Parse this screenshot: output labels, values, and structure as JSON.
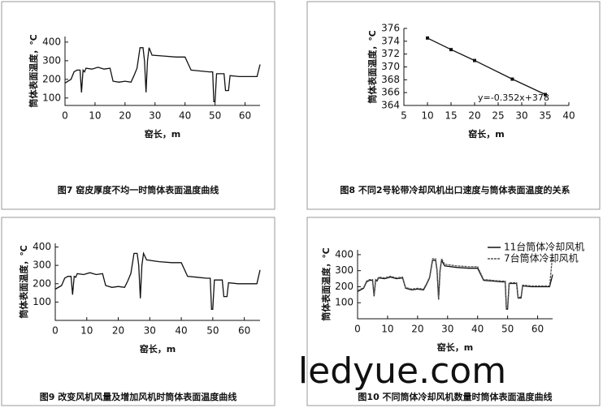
{
  "chart_data": [
    {
      "type": "line",
      "caption": "图7  窑皮厚度不均一时筒体表面温度曲线",
      "xlabel": "窑长，m",
      "ylabel": "筒体表面温度，℃",
      "xlim": [
        0,
        65
      ],
      "xticks": [
        0,
        10,
        20,
        30,
        40,
        50,
        60
      ],
      "ylim": [
        60,
        430
      ],
      "yticks": [
        100,
        200,
        300,
        400
      ],
      "series": [
        {
          "color": "#111111",
          "x": [
            0,
            2,
            3,
            4,
            5,
            5.5,
            6,
            6.5,
            7,
            9,
            11,
            13,
            15,
            16,
            18,
            20,
            22,
            23,
            24,
            25,
            26,
            26.5,
            27,
            27.5,
            28,
            29,
            33,
            37,
            40,
            42,
            45,
            48,
            49.2,
            49.6,
            50,
            50.5,
            53,
            53.5,
            54.5,
            55,
            58,
            62,
            64,
            65
          ],
          "values": [
            180,
            200,
            240,
            250,
            250,
            130,
            250,
            240,
            260,
            255,
            265,
            255,
            260,
            190,
            185,
            190,
            185,
            220,
            260,
            370,
            370,
            300,
            130,
            300,
            370,
            330,
            325,
            320,
            320,
            250,
            245,
            240,
            240,
            80,
            80,
            230,
            230,
            140,
            140,
            220,
            215,
            215,
            215,
            280
          ]
        }
      ]
    },
    {
      "type": "line",
      "caption": "图8  不同2号轮带冷却风机出口速度与筒体表面温度的关系",
      "xlabel": "窑长，m",
      "ylabel": "筒体表面温度，℃",
      "annotation": "y=-0.352x+378",
      "xlim": [
        5,
        40
      ],
      "xticks": [
        5,
        10,
        15,
        20,
        25,
        30,
        35,
        40
      ],
      "ylim": [
        364,
        376
      ],
      "yticks": [
        364,
        366,
        368,
        370,
        372,
        374,
        376
      ],
      "series": [
        {
          "color": "#111111",
          "x": [
            10,
            15,
            20,
            28,
            35
          ],
          "values": [
            374.5,
            372.7,
            371,
            368.1,
            365.7
          ]
        }
      ]
    },
    {
      "type": "line",
      "caption": "图9  改变风机风量及增加风机时筒体表面温度曲线",
      "xlabel": "窑长，m",
      "ylabel": "筒体表面温度，℃",
      "xlim": [
        0,
        65
      ],
      "xticks": [
        0,
        10,
        20,
        30,
        40,
        50,
        60
      ],
      "ylim": [
        0,
        420
      ],
      "yticks": [
        100,
        200,
        300,
        400
      ],
      "series": [
        {
          "color": "#111111",
          "x": [
            0,
            2,
            3,
            4,
            5,
            5.5,
            6,
            6.5,
            7,
            9,
            11,
            13,
            15,
            16,
            18,
            20,
            22,
            23,
            24,
            25,
            26,
            26.5,
            27,
            27.5,
            28,
            29,
            33,
            37,
            40,
            42,
            45,
            48,
            49.2,
            49.6,
            50,
            50.5,
            53,
            53.5,
            54.5,
            55,
            58,
            62,
            64,
            65
          ],
          "values": [
            170,
            190,
            230,
            240,
            240,
            140,
            240,
            235,
            255,
            250,
            260,
            250,
            255,
            190,
            180,
            185,
            180,
            215,
            255,
            365,
            365,
            300,
            120,
            300,
            365,
            330,
            320,
            315,
            315,
            240,
            235,
            230,
            230,
            60,
            60,
            220,
            220,
            130,
            130,
            205,
            200,
            200,
            200,
            275
          ]
        }
      ]
    },
    {
      "type": "line",
      "caption": "图10  不同筒体冷却风机数量时筒体表面温度曲线",
      "xlabel": "窑长，m",
      "ylabel": "筒体表面温度，℃",
      "xlim": [
        0,
        65
      ],
      "xticks": [
        0,
        10,
        20,
        30,
        40,
        50,
        60
      ],
      "ylim": [
        0,
        430
      ],
      "yticks": [
        100,
        200,
        300,
        400
      ],
      "legend": "top-right",
      "series": [
        {
          "name": "11台筒体冷却风机",
          "color": "#111111",
          "x": [
            0,
            2,
            3,
            4,
            5,
            5.5,
            6,
            6.5,
            7,
            9,
            11,
            13,
            15,
            16,
            18,
            20,
            22,
            23,
            24,
            25,
            26,
            26.5,
            27,
            27.5,
            28,
            29,
            33,
            37,
            40,
            42,
            45,
            48,
            49.2,
            49.6,
            50,
            50.5,
            53,
            53.5,
            54.5,
            55,
            58,
            62,
            64,
            65
          ],
          "values": [
            170,
            190,
            230,
            240,
            240,
            140,
            240,
            235,
            255,
            250,
            260,
            250,
            255,
            190,
            180,
            185,
            180,
            215,
            255,
            365,
            365,
            300,
            120,
            300,
            365,
            330,
            320,
            315,
            315,
            240,
            235,
            230,
            230,
            60,
            60,
            220,
            220,
            130,
            130,
            205,
            200,
            200,
            200,
            275
          ]
        },
        {
          "name": "7台筒体冷却风机",
          "color": "#555555",
          "x": [
            0,
            2,
            3,
            4,
            5,
            5.5,
            6,
            6.5,
            7,
            9,
            11,
            13,
            15,
            16,
            18,
            20,
            22,
            23,
            24,
            25,
            26,
            26.5,
            27,
            27.5,
            28,
            29,
            33,
            37,
            40,
            42,
            45,
            48,
            49.2,
            49.6,
            50,
            50.5,
            53,
            53.5,
            54.5,
            55,
            58,
            62,
            64,
            65
          ],
          "values": [
            175,
            195,
            235,
            245,
            245,
            145,
            245,
            240,
            260,
            255,
            265,
            255,
            260,
            195,
            185,
            190,
            185,
            220,
            260,
            375,
            375,
            305,
            125,
            305,
            375,
            340,
            330,
            325,
            325,
            245,
            240,
            235,
            235,
            65,
            65,
            225,
            225,
            135,
            135,
            210,
            205,
            205,
            205,
            400
          ]
        }
      ]
    }
  ],
  "watermark": "ledyue.com"
}
